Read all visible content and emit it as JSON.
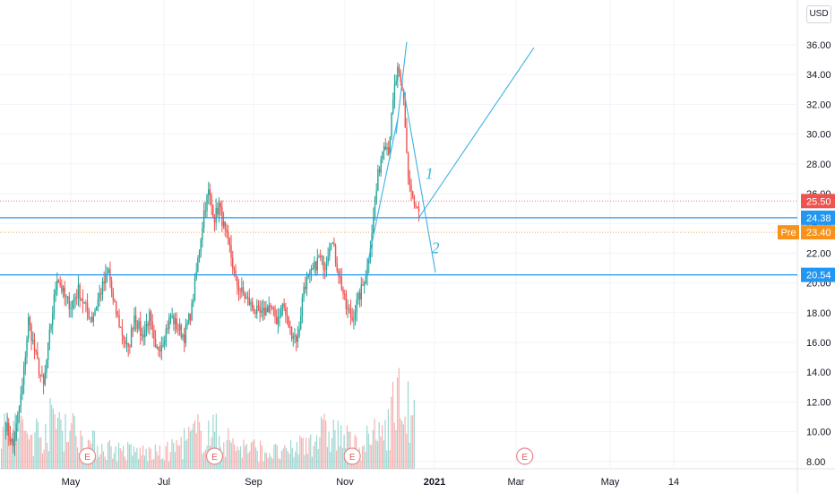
{
  "currency_button": "USD",
  "chart_data": {
    "type": "candlestick",
    "y_ticks": [
      "36.00",
      "34.00",
      "32.00",
      "30.00",
      "28.00",
      "26.00",
      "24.00",
      "22.00",
      "20.00",
      "18.00",
      "16.00",
      "14.00",
      "12.00",
      "10.00",
      "8.00"
    ],
    "x_ticks": [
      "May",
      "Jul",
      "Sep",
      "Nov",
      "2021",
      "Mar",
      "May",
      "14"
    ],
    "ylim": [
      6.6,
      38.1
    ],
    "price_badges": [
      {
        "value": 25.5,
        "label": "25.50",
        "color": "#ef5350",
        "line": "dotted"
      },
      {
        "value": 24.38,
        "label": "24.38",
        "color": "#2196f3",
        "line": "solid"
      },
      {
        "value": 23.4,
        "label": "23.40",
        "prefix": "Pre",
        "color": "#f7931a",
        "line": "dotted"
      },
      {
        "value": 20.54,
        "label": "20.54",
        "color": "#2196f3",
        "line": "solid"
      }
    ],
    "earnings_marker": "E",
    "earnings_dates": [
      "2020-05-12",
      "2020-08-04",
      "2020-11-03",
      "2021-02-25"
    ],
    "price_path": [
      [
        "2020-03-19",
        10.5
      ],
      [
        "2020-03-24",
        9.0
      ],
      [
        "2020-03-30",
        13.0
      ],
      [
        "2020-04-03",
        17.5
      ],
      [
        "2020-04-08",
        15.0
      ],
      [
        "2020-04-13",
        13.0
      ],
      [
        "2020-04-17",
        16.5
      ],
      [
        "2020-04-22",
        20.5
      ],
      [
        "2020-04-27",
        19.0
      ],
      [
        "2020-05-01",
        18.5
      ],
      [
        "2020-05-06",
        19.5
      ],
      [
        "2020-05-11",
        18.3
      ],
      [
        "2020-05-15",
        17.6
      ],
      [
        "2020-05-20",
        19.2
      ],
      [
        "2020-05-26",
        20.8
      ],
      [
        "2020-05-29",
        18.7
      ],
      [
        "2020-06-03",
        16.9
      ],
      [
        "2020-06-08",
        15.4
      ],
      [
        "2020-06-12",
        17.9
      ],
      [
        "2020-06-17",
        16.4
      ],
      [
        "2020-06-22",
        17.7
      ],
      [
        "2020-06-26",
        15.3
      ],
      [
        "2020-07-01",
        16.2
      ],
      [
        "2020-07-06",
        17.8
      ],
      [
        "2020-07-10",
        17.1
      ],
      [
        "2020-07-15",
        16.4
      ],
      [
        "2020-07-20",
        18.3
      ],
      [
        "2020-07-24",
        21.5
      ],
      [
        "2020-07-28",
        24.8
      ],
      [
        "2020-07-31",
        26.1
      ],
      [
        "2020-08-04",
        24.4
      ],
      [
        "2020-08-07",
        25.2
      ],
      [
        "2020-08-11",
        23.3
      ],
      [
        "2020-08-14",
        22.3
      ],
      [
        "2020-08-18",
        20.1
      ],
      [
        "2020-08-21",
        19.5
      ],
      [
        "2020-08-26",
        18.8
      ],
      [
        "2020-08-31",
        18.1
      ],
      [
        "2020-09-04",
        17.8
      ],
      [
        "2020-09-09",
        18.5
      ],
      [
        "2020-09-14",
        17.5
      ],
      [
        "2020-09-18",
        18.6
      ],
      [
        "2020-09-23",
        16.8
      ],
      [
        "2020-09-28",
        16.2
      ],
      [
        "2020-10-02",
        19.8
      ],
      [
        "2020-10-07",
        20.6
      ],
      [
        "2020-10-12",
        21.7
      ],
      [
        "2020-10-16",
        21.2
      ],
      [
        "2020-10-20",
        23.1
      ],
      [
        "2020-10-23",
        21.6
      ],
      [
        "2020-10-27",
        19.8
      ],
      [
        "2020-10-30",
        18.3
      ],
      [
        "2020-11-03",
        17.6
      ],
      [
        "2020-11-06",
        18.6
      ],
      [
        "2020-11-10",
        19.8
      ],
      [
        "2020-11-13",
        21.2
      ],
      [
        "2020-11-17",
        24.3
      ],
      [
        "2020-11-20",
        27.2
      ],
      [
        "2020-11-24",
        29.6
      ],
      [
        "2020-11-27",
        29.0
      ],
      [
        "2020-12-01",
        33.1
      ],
      [
        "2020-12-03",
        34.2
      ],
      [
        "2020-12-07",
        32.3
      ],
      [
        "2020-12-10",
        27.1
      ],
      [
        "2020-12-14",
        25.1
      ],
      [
        "2020-12-17",
        24.8
      ]
    ],
    "volume_profile": [
      [
        "2020-03-19",
        0.6
      ],
      [
        "2020-04-06",
        0.45
      ],
      [
        "2020-04-23",
        0.7
      ],
      [
        "2020-05-12",
        0.35
      ],
      [
        "2020-06-01",
        0.25
      ],
      [
        "2020-07-01",
        0.2
      ],
      [
        "2020-07-29",
        0.55
      ],
      [
        "2020-08-20",
        0.3
      ],
      [
        "2020-09-20",
        0.2
      ],
      [
        "2020-10-08",
        0.45
      ],
      [
        "2020-10-21",
        0.5
      ],
      [
        "2020-11-05",
        0.3
      ],
      [
        "2020-11-20",
        0.45
      ],
      [
        "2020-12-04",
        0.95
      ],
      [
        "2020-12-17",
        0.5
      ]
    ],
    "trendlines": [
      {
        "from": [
          "2020-12-17",
          24.38
        ],
        "to": [
          "2021-03-03",
          35.8
        ]
      },
      {
        "from": [
          "2020-12-02",
          30.0
        ],
        "to": [
          "2020-12-09",
          36.2
        ]
      },
      {
        "from": [
          "2020-11-13",
          21.2
        ],
        "to": [
          "2020-12-03",
          31.0
        ]
      },
      {
        "from": [
          "2020-12-07",
          33.0
        ],
        "to": [
          "2020-12-28",
          20.7
        ]
      }
    ],
    "annotations": [
      {
        "text": "1",
        "at": [
          "2020-12-24",
          27.0
        ]
      },
      {
        "text": "2",
        "at": [
          "2020-12-28",
          22.0
        ]
      }
    ]
  }
}
